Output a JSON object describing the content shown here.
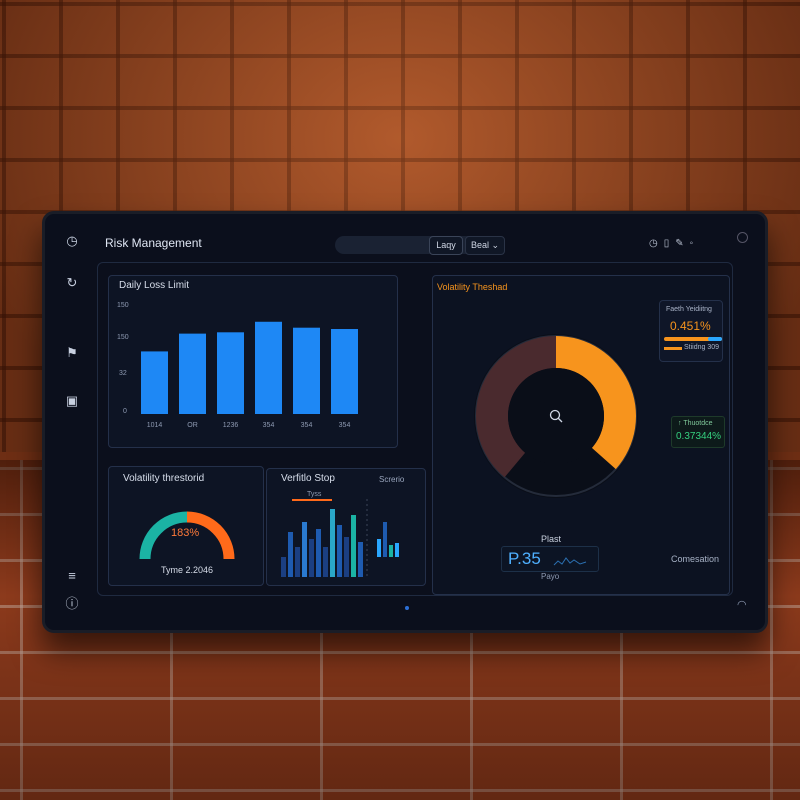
{
  "app": {
    "title": "Risk Management"
  },
  "toolbar": {
    "btn1": "Laqy",
    "btn2": "Beal ⌄"
  },
  "daily_loss": {
    "title": "Daily Loss Limit",
    "yticks": [
      "150",
      "150",
      "32",
      "0"
    ],
    "chart_data": {
      "type": "bar",
      "categories": [
        "1014",
        "OR",
        "1236",
        "354",
        "354",
        "354"
      ],
      "values": [
        95,
        122,
        124,
        140,
        131,
        129
      ],
      "ylim": [
        0,
        170
      ],
      "color": "#1e88f5"
    }
  },
  "vol_panel": {
    "title": "Volatility Theshad",
    "widget1": {
      "label": "Faeth Yeidiitng",
      "value": "0.451%",
      "sub": "Stiidng 309"
    },
    "widget2": {
      "label": "↑ Thuotdce",
      "value": "0.37344%"
    },
    "gauge_fraction": 0.47,
    "bottom_label": "Plast",
    "big_value": "P.35",
    "big_sub": "Payo",
    "corner_label": "Comesation"
  },
  "vol_small": {
    "title": "Volatility threstorid",
    "value": "183%",
    "sub": "Tyme 2.2046"
  },
  "portfolio": {
    "title": "Verfitlo Stop",
    "tag": "Screrio",
    "mini": "Tyss",
    "chart_data": {
      "type": "bar",
      "values": [
        20,
        45,
        30,
        55,
        38,
        48,
        30,
        68,
        52,
        40,
        62,
        35
      ],
      "series_right": [
        18,
        35,
        12,
        14
      ]
    }
  },
  "colors": {
    "accent": "#f7941d",
    "blue": "#1e88f5",
    "teal": "#1bb3a4",
    "orange": "#ff6a1a",
    "green": "#35d07f"
  }
}
